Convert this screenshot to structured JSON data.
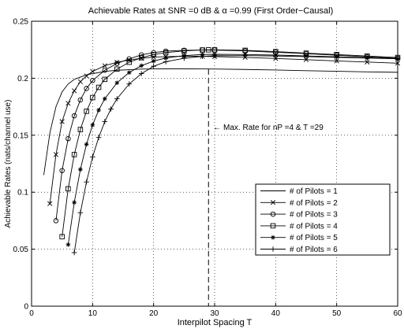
{
  "chart_data": {
    "type": "line",
    "title": "Achievable Rates at SNR =0 dB & α =0.99 (First Order−Causal)",
    "xlabel": "Interpilot Spacing T",
    "ylabel": "Achievable Rates (nats/channel use)",
    "xlim": [
      0,
      60
    ],
    "ylim": [
      0,
      0.25
    ],
    "xticks": [
      "0",
      "10",
      "20",
      "30",
      "40",
      "50",
      "60"
    ],
    "yticks": [
      "0",
      "0.05",
      "0.1",
      "0.15",
      "0.2",
      "0.25"
    ],
    "grid": true,
    "legend_position": "lower-right",
    "annotation": {
      "text": "← Max. Rate for nP =4 & T =29",
      "x": 29
    },
    "series": [
      {
        "name": "# of Pilots = 1",
        "marker": "none",
        "x": [
          2,
          3,
          4,
          5,
          6,
          7,
          8,
          9,
          10,
          12,
          14,
          16,
          18,
          20,
          22,
          25,
          28,
          30,
          35,
          40,
          45,
          50,
          55,
          60
        ],
        "y": [
          0.115,
          0.152,
          0.175,
          0.188,
          0.195,
          0.199,
          0.201,
          0.203,
          0.204,
          0.206,
          0.207,
          0.2075,
          0.208,
          0.2082,
          0.2083,
          0.2083,
          0.2082,
          0.2081,
          0.2077,
          0.2072,
          0.2066,
          0.2061,
          0.2056,
          0.2052
        ]
      },
      {
        "name": "# of Pilots = 2",
        "marker": "x",
        "x": [
          3,
          4,
          5,
          6,
          7,
          8,
          9,
          10,
          12,
          14,
          16,
          18,
          20,
          22,
          25,
          28,
          30,
          35,
          40,
          45,
          50,
          55,
          60
        ],
        "y": [
          0.09,
          0.133,
          0.162,
          0.178,
          0.189,
          0.197,
          0.202,
          0.206,
          0.211,
          0.214,
          0.216,
          0.2175,
          0.2185,
          0.219,
          0.2193,
          0.2192,
          0.219,
          0.2183,
          0.2173,
          0.2163,
          0.2152,
          0.2142,
          0.2132
        ]
      },
      {
        "name": "# of Pilots = 3",
        "marker": "o",
        "x": [
          4,
          5,
          6,
          7,
          8,
          9,
          10,
          12,
          14,
          16,
          18,
          20,
          22,
          25,
          28,
          30,
          35,
          40,
          45,
          50,
          55,
          60
        ],
        "y": [
          0.075,
          0.119,
          0.147,
          0.167,
          0.181,
          0.191,
          0.198,
          0.207,
          0.213,
          0.217,
          0.2205,
          0.2225,
          0.2238,
          0.2245,
          0.2248,
          0.2247,
          0.224,
          0.2228,
          0.2216,
          0.2202,
          0.2188,
          0.2175
        ]
      },
      {
        "name": "# of Pilots = 4",
        "marker": "square",
        "x": [
          5,
          6,
          7,
          8,
          9,
          10,
          11,
          12,
          14,
          16,
          18,
          20,
          22,
          25,
          28,
          29,
          30,
          35,
          40,
          45,
          50,
          55,
          60
        ],
        "y": [
          0.061,
          0.103,
          0.133,
          0.155,
          0.171,
          0.183,
          0.192,
          0.199,
          0.208,
          0.214,
          0.218,
          0.2208,
          0.2225,
          0.224,
          0.2248,
          0.2249,
          0.2249,
          0.2245,
          0.2234,
          0.222,
          0.2208,
          0.2195,
          0.2182
        ]
      },
      {
        "name": "# of Pilots = 5",
        "marker": "*",
        "x": [
          6,
          7,
          8,
          9,
          10,
          11,
          12,
          14,
          16,
          18,
          20,
          22,
          25,
          28,
          30,
          35,
          40,
          45,
          50,
          55,
          60
        ],
        "y": [
          0.054,
          0.091,
          0.12,
          0.142,
          0.159,
          0.172,
          0.182,
          0.196,
          0.205,
          0.211,
          0.215,
          0.2178,
          0.2198,
          0.2208,
          0.221,
          0.2208,
          0.2203,
          0.2196,
          0.2188,
          0.218,
          0.2172
        ]
      },
      {
        "name": "# of Pilots = 6",
        "marker": "+",
        "x": [
          7,
          8,
          9,
          10,
          11,
          12,
          13,
          14,
          16,
          18,
          20,
          22,
          25,
          28,
          30,
          35,
          40,
          45,
          50,
          55,
          60
        ],
        "y": [
          0.047,
          0.082,
          0.109,
          0.131,
          0.148,
          0.162,
          0.173,
          0.182,
          0.195,
          0.204,
          0.2105,
          0.2145,
          0.2175,
          0.2192,
          0.2197,
          0.2198,
          0.2195,
          0.219,
          0.2183,
          0.2177,
          0.2171
        ]
      }
    ]
  }
}
